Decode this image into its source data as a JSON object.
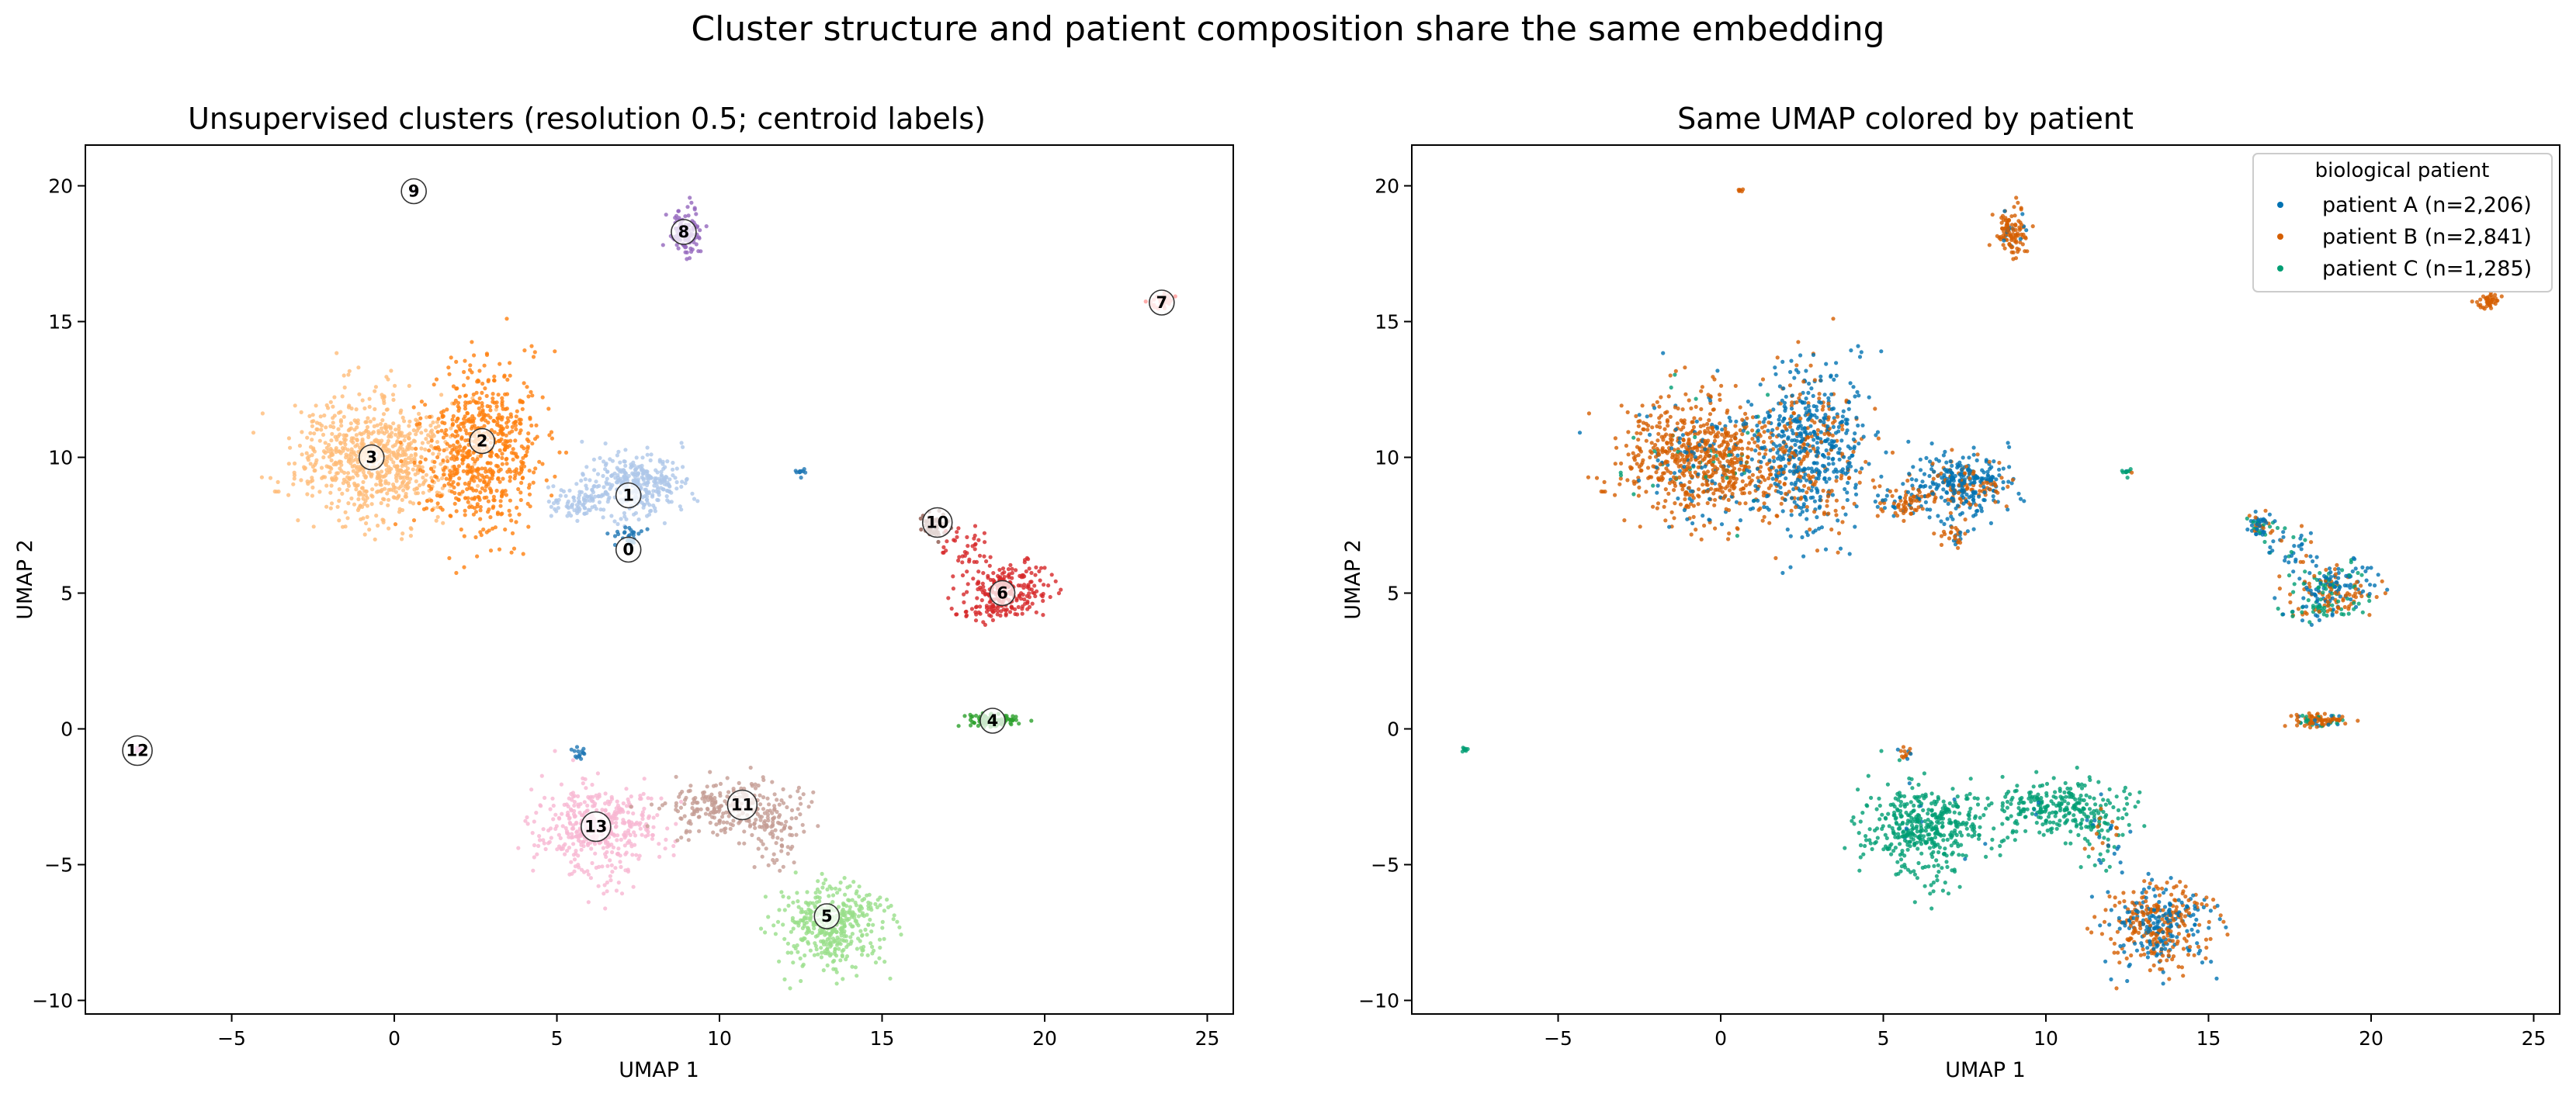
{
  "figure_title": "Cluster structure and patient composition share the same embedding",
  "chart_data": [
    {
      "type": "scatter",
      "title": "Unsupervised clusters (resolution 0.5; centroid labels)",
      "xlabel": "UMAP 1",
      "ylabel": "UMAP 2",
      "xlim": [
        -9.5,
        25.8
      ],
      "ylim": [
        -10.5,
        21.5
      ],
      "xticks": [
        -5,
        0,
        5,
        10,
        15,
        20,
        25
      ],
      "yticks": [
        -10,
        -5,
        0,
        5,
        10,
        15,
        20
      ],
      "grid": false,
      "legend": "none",
      "clusters": [
        {
          "id": "0",
          "color": "#1f77b4",
          "label_x": 7.2,
          "label_y": 6.6
        },
        {
          "id": "1",
          "color": "#aec7e8",
          "label_x": 7.2,
          "label_y": 8.6
        },
        {
          "id": "2",
          "color": "#ff7f0e",
          "label_x": 2.7,
          "label_y": 10.6
        },
        {
          "id": "3",
          "color": "#ffbb78",
          "label_x": -0.7,
          "label_y": 10.0
        },
        {
          "id": "4",
          "color": "#2ca02c",
          "label_x": 18.4,
          "label_y": 0.3
        },
        {
          "id": "5",
          "color": "#98df8a",
          "label_x": 13.3,
          "label_y": -6.9
        },
        {
          "id": "6",
          "color": "#d62728",
          "label_x": 18.7,
          "label_y": 5.0
        },
        {
          "id": "7",
          "color": "#ff9896",
          "label_x": 23.6,
          "label_y": 15.7
        },
        {
          "id": "8",
          "color": "#9467bd",
          "label_x": 8.9,
          "label_y": 18.3
        },
        {
          "id": "9",
          "color": "#c5b0d5",
          "label_x": 0.6,
          "label_y": 19.8
        },
        {
          "id": "10",
          "color": "#8c564b",
          "label_x": 16.7,
          "label_y": 7.6
        },
        {
          "id": "11",
          "color": "#c49c94",
          "label_x": 10.7,
          "label_y": -2.8
        },
        {
          "id": "12",
          "color": "#e377c2",
          "label_x": -7.9,
          "label_y": -0.8
        },
        {
          "id": "13",
          "color": "#f7b6d2",
          "label_x": 6.2,
          "label_y": -3.6
        }
      ],
      "blobs": [
        {
          "cluster": "3",
          "cx": -0.6,
          "cy": 10.0,
          "sx": 1.2,
          "sy": 1.1,
          "n": 750
        },
        {
          "cluster": "2",
          "cx": 2.7,
          "cy": 10.3,
          "sx": 0.9,
          "sy": 1.5,
          "n": 650
        },
        {
          "cluster": "1",
          "cx": 7.4,
          "cy": 9.0,
          "sx": 0.8,
          "sy": 0.55,
          "n": 350
        },
        {
          "cluster": "1",
          "cx": 5.6,
          "cy": 8.3,
          "sx": 0.5,
          "sy": 0.3,
          "n": 70
        },
        {
          "cluster": "0",
          "cx": 7.2,
          "cy": 7.1,
          "sx": 0.2,
          "sy": 0.2,
          "n": 30
        },
        {
          "cluster": "8",
          "cx": 8.9,
          "cy": 18.3,
          "sx": 0.25,
          "sy": 0.4,
          "n": 110
        },
        {
          "cluster": "9",
          "cx": 0.6,
          "cy": 19.8,
          "sx": 0.05,
          "sy": 0.05,
          "n": 6
        },
        {
          "cluster": "7",
          "cx": 23.6,
          "cy": 15.7,
          "sx": 0.2,
          "sy": 0.12,
          "n": 40
        },
        {
          "cluster": "0",
          "cx": 12.5,
          "cy": 9.45,
          "sx": 0.12,
          "sy": 0.08,
          "n": 12
        },
        {
          "cluster": "10",
          "cx": 16.6,
          "cy": 7.5,
          "sx": 0.25,
          "sy": 0.25,
          "n": 60
        },
        {
          "cluster": "6",
          "cx": 17.6,
          "cy": 6.6,
          "sx": 0.35,
          "sy": 0.5,
          "n": 40
        },
        {
          "cluster": "6",
          "cx": 18.9,
          "cy": 5.2,
          "sx": 0.6,
          "sy": 0.45,
          "n": 180
        },
        {
          "cluster": "6",
          "cx": 18.4,
          "cy": 4.4,
          "sx": 0.45,
          "sy": 0.18,
          "n": 60
        },
        {
          "cluster": "4",
          "cx": 18.4,
          "cy": 0.3,
          "sx": 0.4,
          "sy": 0.12,
          "n": 90
        },
        {
          "cluster": "12",
          "cx": -7.9,
          "cy": -0.8,
          "sx": 0.06,
          "sy": 0.06,
          "n": 8
        },
        {
          "cluster": "0",
          "cx": 5.7,
          "cy": -0.9,
          "sx": 0.1,
          "sy": 0.12,
          "n": 15
        },
        {
          "cluster": "13",
          "cx": 6.3,
          "cy": -3.7,
          "sx": 0.9,
          "sy": 0.85,
          "n": 430
        },
        {
          "cluster": "11",
          "cx": 10.4,
          "cy": -2.9,
          "sx": 1.0,
          "sy": 0.45,
          "n": 260
        },
        {
          "cluster": "11",
          "cx": 11.7,
          "cy": -4.0,
          "sx": 0.35,
          "sy": 0.6,
          "n": 60
        },
        {
          "cluster": "5",
          "cx": 13.5,
          "cy": -7.2,
          "sx": 0.75,
          "sy": 0.8,
          "n": 420
        }
      ]
    },
    {
      "type": "scatter",
      "title": "Same UMAP colored by patient",
      "xlabel": "UMAP 1",
      "ylabel": "UMAP 2",
      "xlim": [
        -9.5,
        25.8
      ],
      "ylim": [
        -10.5,
        21.5
      ],
      "xticks": [
        -5,
        0,
        5,
        10,
        15,
        20,
        25
      ],
      "yticks": [
        -10,
        -5,
        0,
        5,
        10,
        15,
        20
      ],
      "grid": false,
      "legend_position": "top-right",
      "legend_title": "biological patient",
      "series": [
        {
          "name": "patient A (n=2,206)",
          "color": "#0072b2"
        },
        {
          "name": "patient B (n=2,841)",
          "color": "#d55e00"
        },
        {
          "name": "patient C (n=1,285)",
          "color": "#009e73"
        }
      ],
      "blob_patient_mix": [
        [
          0.15,
          0.8,
          0.05
        ],
        [
          0.7,
          0.3,
          0.0
        ],
        [
          0.7,
          0.3,
          0.0
        ],
        [
          0.3,
          0.7,
          0.0
        ],
        [
          0.3,
          0.7,
          0.0
        ],
        [
          0.15,
          0.85,
          0.0
        ],
        [
          0.0,
          1.0,
          0.0
        ],
        [
          0.0,
          1.0,
          0.0
        ],
        [
          0.2,
          0.2,
          0.6
        ],
        [
          0.5,
          0.2,
          0.3
        ],
        [
          0.5,
          0.3,
          0.2
        ],
        [
          0.45,
          0.35,
          0.2
        ],
        [
          0.2,
          0.2,
          0.6
        ],
        [
          0.1,
          0.7,
          0.2
        ],
        [
          0.0,
          0.0,
          1.0
        ],
        [
          0.2,
          0.7,
          0.1
        ],
        [
          0.02,
          0.0,
          0.98
        ],
        [
          0.03,
          0.0,
          0.97
        ],
        [
          0.2,
          0.3,
          0.5
        ],
        [
          0.45,
          0.55,
          0.0
        ]
      ]
    }
  ]
}
